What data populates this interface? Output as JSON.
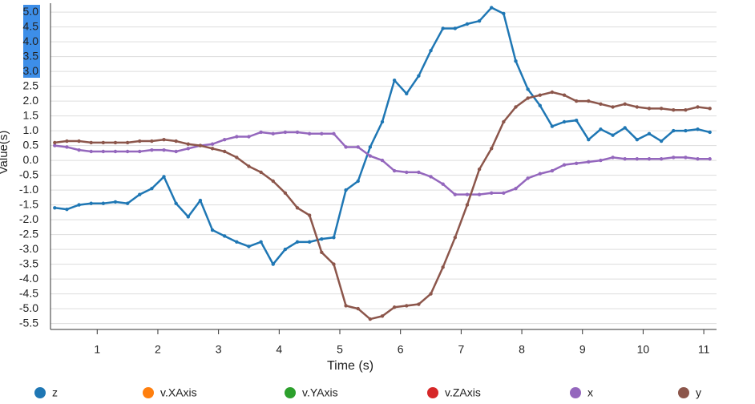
{
  "chart_data": {
    "type": "line",
    "x_label": "Time (s)",
    "y_label": "Value(s)",
    "xlim": [
      0.23,
      11.21
    ],
    "ylim": [
      -5.7,
      5.3
    ],
    "xticks": [
      1,
      2,
      3,
      4,
      5,
      6,
      7,
      8,
      9,
      10,
      11
    ],
    "yticks": [
      -5.5,
      {
        "value": -5,
        "label": "-5.0"
      },
      -4.5,
      {
        "value": -4,
        "label": "-4.0"
      },
      -3.5,
      {
        "value": -3,
        "label": "-3.0"
      },
      -2.5,
      {
        "value": -2,
        "label": "-2.0"
      },
      -1.5,
      {
        "value": -1,
        "label": "-1.0"
      },
      -0.5,
      {
        "value": 0,
        "label": "0.0"
      },
      0.5,
      {
        "value": 1,
        "label": "1.0"
      },
      1.5,
      {
        "value": 2,
        "label": "2.0"
      },
      2.5,
      {
        "value": 3,
        "label": "3.0"
      },
      3.5,
      {
        "value": 4,
        "label": "4.0"
      },
      4.5,
      {
        "value": 5,
        "label": "5.0"
      }
    ],
    "grid": true,
    "legend": "bottom",
    "x": [
      0.3,
      0.5,
      0.7,
      0.9,
      1.1,
      1.3,
      1.5,
      1.7,
      1.9,
      2.1,
      2.3,
      2.5,
      2.7,
      2.9,
      3.1,
      3.3,
      3.5,
      3.7,
      3.9,
      4.1,
      4.3,
      4.5,
      4.7,
      4.9,
      5.1,
      5.3,
      5.5,
      5.7,
      5.9,
      6.1,
      6.3,
      6.5,
      6.7,
      6.9,
      7.1,
      7.3,
      7.5,
      7.7,
      7.9,
      8.1,
      8.3,
      8.5,
      8.7,
      8.9,
      9.1,
      9.3,
      9.5,
      9.7,
      9.9,
      10.1,
      10.3,
      10.5,
      10.7,
      10.9,
      11.1
    ],
    "series": [
      {
        "name": "z",
        "color": "#1f77b4",
        "values": [
          -1.6,
          -1.65,
          -1.5,
          -1.45,
          -1.45,
          -1.4,
          -1.45,
          -1.15,
          -0.95,
          -0.55,
          -1.45,
          -1.9,
          -1.35,
          -2.35,
          -2.55,
          -2.75,
          -2.9,
          -2.75,
          -3.5,
          -3.0,
          -2.75,
          -2.75,
          -2.65,
          -2.6,
          -1.0,
          -0.7,
          0.45,
          1.3,
          2.7,
          2.25,
          2.85,
          3.7,
          4.45,
          4.45,
          4.6,
          4.7,
          5.15,
          4.95,
          3.35,
          2.4,
          1.85,
          1.15,
          1.3,
          1.35,
          0.7,
          1.05,
          0.85,
          1.1,
          0.7,
          0.9,
          0.65,
          1.0,
          1.0,
          1.05,
          0.95
        ]
      },
      {
        "name": "v.XAxis",
        "color": "#ff7f0e"
      },
      {
        "name": "v.YAxis",
        "color": "#2ca02c"
      },
      {
        "name": "v.ZAxis",
        "color": "#d62728"
      },
      {
        "name": "x",
        "color": "#9467bd",
        "values": [
          0.5,
          0.45,
          0.35,
          0.3,
          0.3,
          0.3,
          0.3,
          0.3,
          0.35,
          0.35,
          0.3,
          0.4,
          0.5,
          0.55,
          0.7,
          0.8,
          0.8,
          0.95,
          0.9,
          0.95,
          0.95,
          0.9,
          0.9,
          0.9,
          0.45,
          0.45,
          0.15,
          0.0,
          -0.35,
          -0.4,
          -0.4,
          -0.55,
          -0.8,
          -1.15,
          -1.15,
          -1.15,
          -1.1,
          -1.1,
          -0.95,
          -0.6,
          -0.45,
          -0.35,
          -0.15,
          -0.1,
          -0.05,
          0.0,
          0.1,
          0.05,
          0.05,
          0.05,
          0.05,
          0.1,
          0.1,
          0.05,
          0.05
        ]
      },
      {
        "name": "y",
        "color": "#8c564b",
        "values": [
          0.6,
          0.65,
          0.65,
          0.6,
          0.6,
          0.6,
          0.6,
          0.65,
          0.65,
          0.7,
          0.65,
          0.55,
          0.5,
          0.4,
          0.3,
          0.1,
          -0.2,
          -0.4,
          -0.7,
          -1.1,
          -1.6,
          -1.85,
          -3.1,
          -3.5,
          -4.9,
          -5.0,
          -5.35,
          -5.25,
          -4.95,
          -4.9,
          -4.85,
          -4.5,
          -3.6,
          -2.6,
          -1.5,
          -0.3,
          0.4,
          1.3,
          1.8,
          2.1,
          2.2,
          2.3,
          2.2,
          2.0,
          2.0,
          1.9,
          1.8,
          1.9,
          1.8,
          1.75,
          1.75,
          1.7,
          1.7,
          1.8,
          1.75
        ]
      }
    ]
  }
}
